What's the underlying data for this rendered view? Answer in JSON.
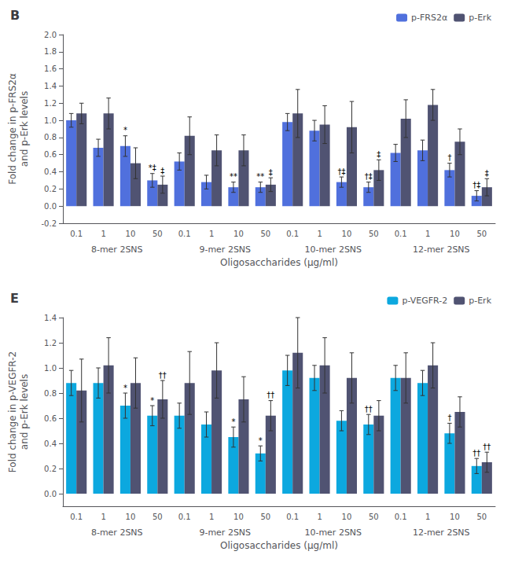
{
  "chart_data": [
    {
      "type": "bar",
      "title": "B",
      "ylabel": "Fold change in p-FRS2α\nand p-Erk levels",
      "xlabel": "Oligosaccharides (μg/ml)",
      "categories": [
        "0.1",
        "1",
        "10",
        "50",
        "0.1",
        "1",
        "10",
        "50",
        "0.1",
        "1",
        "10",
        "50",
        "0.1",
        "1",
        "10",
        "50"
      ],
      "groups": [
        "8-mer 2SNS",
        "9-mer 2SNS",
        "10-mer 2SNS",
        "12-mer 2SNS"
      ],
      "series": [
        {
          "name": "p-FRS2α",
          "values": [
            1.0,
            0.68,
            0.7,
            0.3,
            0.52,
            0.28,
            0.22,
            0.22,
            0.98,
            0.88,
            0.28,
            0.22,
            0.62,
            0.65,
            0.42,
            0.12
          ],
          "errors": [
            0.08,
            0.1,
            0.12,
            0.08,
            0.1,
            0.08,
            0.06,
            0.06,
            0.1,
            0.12,
            0.06,
            0.06,
            0.1,
            0.12,
            0.08,
            0.06
          ],
          "annotations": [
            null,
            null,
            "*",
            "*‡",
            null,
            null,
            "**",
            "**",
            null,
            null,
            "†‡",
            "†‡",
            null,
            null,
            "†",
            "†‡"
          ]
        },
        {
          "name": "p-Erk",
          "values": [
            1.08,
            1.08,
            0.5,
            0.25,
            0.82,
            0.65,
            0.65,
            0.25,
            1.08,
            0.95,
            0.92,
            0.42,
            1.02,
            1.18,
            0.75,
            0.22
          ],
          "errors": [
            0.12,
            0.18,
            0.18,
            0.1,
            0.22,
            0.18,
            0.18,
            0.08,
            0.28,
            0.22,
            0.3,
            0.12,
            0.22,
            0.18,
            0.15,
            0.1
          ],
          "annotations": [
            null,
            null,
            null,
            "‡",
            null,
            null,
            null,
            "‡",
            null,
            null,
            null,
            "‡",
            null,
            null,
            null,
            "‡"
          ]
        }
      ],
      "ylim": [
        -0.2,
        2.0
      ],
      "yticks": [
        -0.2,
        {
          "value": 0.0,
          "label": "0.0"
        },
        0.2,
        0.4,
        0.6,
        0.8,
        {
          "value": 1.0,
          "label": "1.0"
        },
        1.2,
        1.4,
        1.6,
        1.8,
        {
          "value": 2.0,
          "label": "2.0"
        }
      ],
      "grid": false,
      "legend": "upper right"
    },
    {
      "type": "bar",
      "title": "E",
      "ylabel": "Fold change in p-VEGFR-2\nand p-Erk levels",
      "xlabel": "Oligosaccharides (μg/ml)",
      "categories": [
        "0.1",
        "1",
        "10",
        "50",
        "0.1",
        "1",
        "10",
        "50",
        "0.1",
        "1",
        "10",
        "50",
        "0.1",
        "1",
        "10",
        "50"
      ],
      "groups": [
        "8-mer 2SNS",
        "9-mer 2SNS",
        "10-mer 2SNS",
        "12-mer 2SNS"
      ],
      "series": [
        {
          "name": "p-VEGFR-2",
          "values": [
            0.88,
            0.88,
            0.7,
            0.62,
            0.62,
            0.55,
            0.45,
            0.32,
            0.98,
            0.92,
            0.58,
            0.55,
            0.92,
            0.88,
            0.48,
            0.22
          ],
          "errors": [
            0.1,
            0.12,
            0.1,
            0.08,
            0.1,
            0.1,
            0.08,
            0.06,
            0.12,
            0.1,
            0.08,
            0.08,
            0.1,
            0.1,
            0.08,
            0.06
          ],
          "annotations": [
            null,
            null,
            "*",
            "*",
            null,
            null,
            "*",
            "*",
            null,
            null,
            null,
            "††",
            null,
            null,
            "†",
            "††"
          ]
        },
        {
          "name": "p-Erk",
          "values": [
            0.82,
            1.02,
            0.88,
            0.75,
            0.88,
            0.98,
            0.75,
            0.62,
            1.12,
            1.02,
            0.92,
            0.62,
            0.92,
            1.02,
            0.65,
            0.25
          ],
          "errors": [
            0.25,
            0.22,
            0.2,
            0.15,
            0.25,
            0.22,
            0.18,
            0.12,
            0.28,
            0.22,
            0.2,
            0.12,
            0.2,
            0.18,
            0.12,
            0.08
          ],
          "annotations": [
            null,
            null,
            null,
            "††",
            null,
            null,
            null,
            "††",
            null,
            null,
            null,
            null,
            null,
            null,
            null,
            "††"
          ]
        }
      ],
      "ylim": [
        -0.1,
        1.4
      ],
      "yticks": [
        {
          "value": 0.0,
          "label": "0.0"
        },
        0.2,
        0.4,
        0.6,
        0.8,
        {
          "value": 1.0,
          "label": "1.0"
        },
        1.2,
        1.4
      ],
      "grid": false,
      "legend": "upper right"
    }
  ]
}
